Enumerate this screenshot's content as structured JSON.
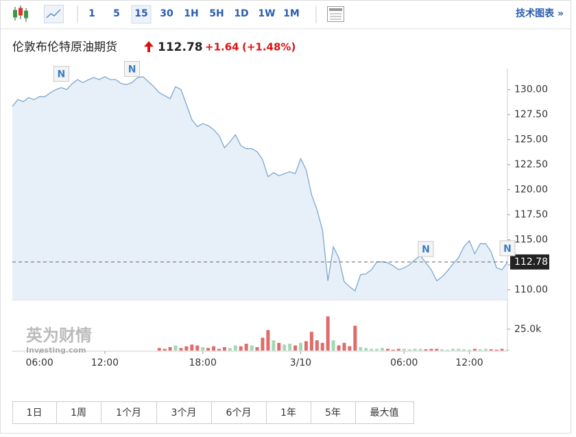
{
  "toolbar": {
    "intervals": [
      "1",
      "5",
      "15",
      "30",
      "1H",
      "5H",
      "1D",
      "1W",
      "1M"
    ],
    "selected_index": 2,
    "chart_link": "技术图表 »"
  },
  "chart_data": {
    "type": "line",
    "title": "伦敦布伦特原油期货",
    "last_value": 112.78,
    "change": "+1.64",
    "change_percent": "(+1.48%)",
    "values": [
      128.3,
      129.0,
      128.8,
      129.2,
      129.0,
      129.3,
      129.3,
      129.7,
      130.0,
      130.2,
      130.0,
      130.6,
      131.0,
      130.7,
      131.0,
      131.2,
      131.0,
      131.3,
      131.0,
      131.0,
      130.6,
      130.5,
      130.7,
      131.2,
      131.3,
      130.8,
      130.3,
      129.7,
      129.4,
      129.1,
      130.3,
      130.0,
      128.5,
      127.0,
      126.3,
      126.6,
      126.4,
      126.0,
      125.4,
      124.2,
      124.8,
      125.5,
      124.4,
      124.1,
      124.1,
      123.8,
      123.0,
      121.3,
      121.7,
      121.4,
      121.6,
      121.8,
      121.6,
      123.1,
      122.0,
      119.5,
      118.0,
      116.0,
      110.9,
      114.3,
      113.2,
      110.8,
      110.3,
      109.9,
      111.5,
      111.6,
      112.0,
      112.8,
      112.8,
      112.7,
      112.4,
      112.0,
      112.2,
      112.5,
      113.0,
      113.4,
      112.7,
      112.0,
      110.9,
      111.3,
      111.9,
      112.6,
      113.2,
      114.3,
      114.9,
      113.6,
      114.6,
      114.6,
      113.8,
      112.2,
      112.0,
      112.78
    ],
    "ylim": [
      109,
      132.1
    ],
    "yticks": [
      {
        "value": 110,
        "label": "110.00"
      },
      {
        "value": 112.5,
        "label": "112.50"
      },
      {
        "value": 115,
        "label": "115.00"
      },
      {
        "value": 117.5,
        "label": "117.50"
      },
      {
        "value": 120,
        "label": "120.00"
      },
      {
        "value": 122.5,
        "label": "122.50"
      },
      {
        "value": 125,
        "label": "125.00"
      },
      {
        "value": 127.5,
        "label": "127.50"
      },
      {
        "value": 130,
        "label": "130.00"
      }
    ],
    "xticks": [
      {
        "value": 5,
        "label": "06:00"
      },
      {
        "value": 17,
        "label": "12:00"
      },
      {
        "value": 35,
        "label": "18:00"
      },
      {
        "value": 53,
        "label": "3/10"
      },
      {
        "value": 72,
        "label": "06:00"
      },
      {
        "value": 84,
        "label": "12:00"
      }
    ],
    "color": "#7ba7cf",
    "fill": "#e7eff8",
    "up_color": "#a6d8b5",
    "down_color": "#e06b6b",
    "volume": {
      "values": [
        null,
        null,
        null,
        null,
        null,
        null,
        null,
        null,
        null,
        null,
        null,
        null,
        null,
        null,
        null,
        null,
        null,
        null,
        null,
        null,
        null,
        null,
        null,
        null,
        null,
        null,
        null,
        3000,
        2000,
        4000,
        6000,
        3000,
        5000,
        7000,
        6000,
        4000,
        3000,
        5000,
        2000,
        4000,
        3000,
        6000,
        5000,
        8000,
        6000,
        4000,
        15000,
        24000,
        12000,
        9000,
        7000,
        8000,
        6000,
        9000,
        11000,
        22000,
        12000,
        9000,
        40000,
        12000,
        6000,
        9000,
        5000,
        29000,
        4000,
        3000,
        2000,
        2000,
        3000,
        2000,
        1000,
        2000,
        2000,
        1500,
        2000,
        2000,
        1500,
        2000,
        2000,
        1500,
        1000,
        2000,
        2000,
        1500,
        1000,
        2000,
        1500,
        2000,
        1500,
        1000,
        2000,
        1000
      ],
      "ylim": [
        0,
        57000
      ],
      "yticks": [
        {
          "value": 25000,
          "label": "25.0k"
        }
      ]
    },
    "news_markers": [
      {
        "index": 9,
        "label": "N"
      },
      {
        "index": 22,
        "label": "N"
      },
      {
        "index": 76,
        "label": "N"
      },
      {
        "index": 91,
        "label": "N"
      }
    ],
    "watermark": "英为财情",
    "watermark_sub": "Investing.com"
  },
  "range_buttons": [
    "1日",
    "1周",
    "1个月",
    "3个月",
    "6个月",
    "1年",
    "5年",
    "最大值"
  ]
}
